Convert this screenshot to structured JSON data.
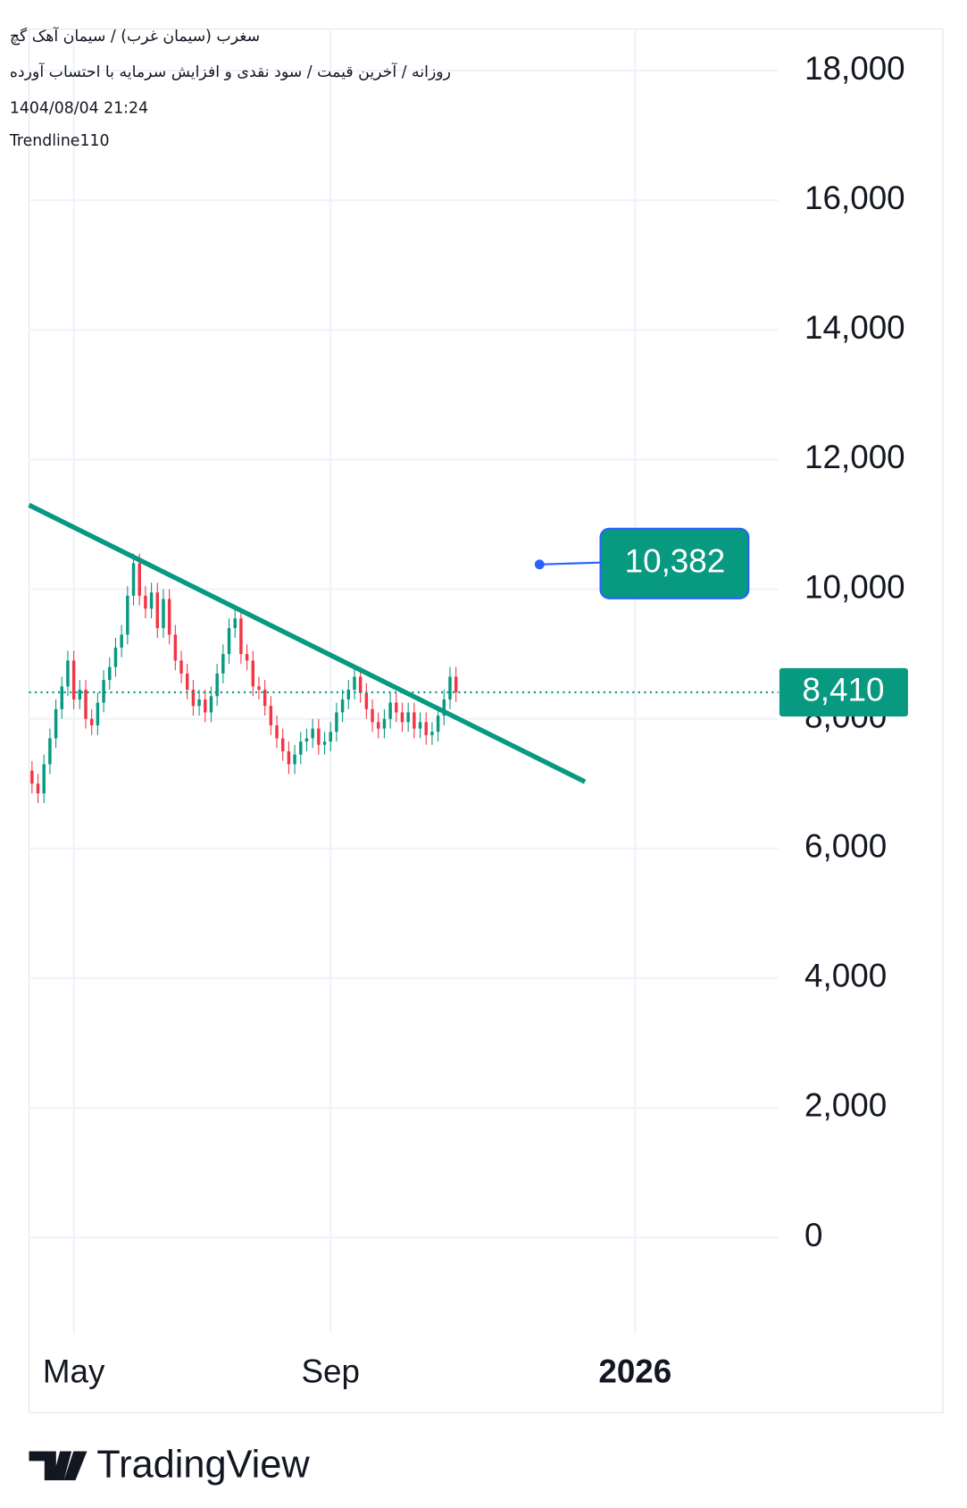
{
  "chart_data": {
    "type": "candlestick",
    "title": "سغرب (سیمان غرب) / سیمان آهک گچ",
    "subtitle": "روزانه / آخرین قیمت / سود نقدی و افزایش سرمایه با احتساب آورده",
    "date": "1404/08/04 21:24",
    "indicator": "Trendline110",
    "brand": "TradingView",
    "up_color": "#089981",
    "down_color": "#f23645",
    "open": [
      7200,
      7000,
      6850,
      7300,
      7700,
      8150,
      8500,
      8900,
      8300,
      8450,
      8000,
      7900,
      8250,
      8600,
      8800,
      9100,
      9300,
      9900,
      10400,
      9900,
      9700,
      9950,
      9400,
      9850,
      9300,
      8900,
      8700,
      8450,
      8200,
      8300,
      8100,
      8350,
      8700,
      9000,
      9400,
      9550,
      9000,
      8900,
      8500,
      8450,
      8200,
      7900,
      7700,
      7500,
      7300,
      7450,
      7650,
      7700,
      7850,
      7600,
      7650,
      7800,
      8100,
      8300,
      8450,
      8650,
      8400,
      8150,
      7950,
      7850,
      8000,
      8250,
      8100,
      7950,
      8100,
      7850,
      7950,
      7750,
      7800,
      8050,
      8300,
      8650
    ],
    "high": [
      7350,
      7150,
      7450,
      7850,
      8300,
      8650,
      9050,
      9050,
      8600,
      8600,
      8150,
      8400,
      8750,
      8950,
      9250,
      9450,
      10050,
      10550,
      10550,
      10050,
      10100,
      10100,
      10000,
      10000,
      9450,
      9050,
      8850,
      8600,
      8450,
      8450,
      8500,
      8850,
      9150,
      9550,
      9700,
      9700,
      9150,
      9050,
      8650,
      8600,
      8350,
      8050,
      7850,
      7650,
      7600,
      7800,
      7850,
      8000,
      8000,
      7800,
      7950,
      8250,
      8450,
      8600,
      8800,
      8800,
      8550,
      8300,
      8100,
      8150,
      8400,
      8400,
      8250,
      8250,
      8250,
      8100,
      8100,
      7950,
      8200,
      8450,
      8800,
      8800
    ],
    "low": [
      6850,
      6700,
      6700,
      7150,
      7550,
      8000,
      8350,
      8150,
      8150,
      7850,
      7750,
      7750,
      8100,
      8450,
      8650,
      8950,
      9150,
      9750,
      9750,
      9550,
      9550,
      9250,
      9250,
      9150,
      8750,
      8550,
      8300,
      8050,
      8050,
      7950,
      7950,
      8200,
      8550,
      8850,
      9250,
      8850,
      8750,
      8350,
      8300,
      8050,
      7750,
      7550,
      7350,
      7150,
      7150,
      7300,
      7500,
      7550,
      7450,
      7450,
      7500,
      7650,
      7950,
      8150,
      8300,
      8250,
      8000,
      7800,
      7700,
      7700,
      7850,
      7950,
      7800,
      7800,
      7700,
      7700,
      7600,
      7600,
      7650,
      7900,
      8150,
      8260
    ],
    "close": [
      7000,
      6850,
      7300,
      7700,
      8150,
      8500,
      8900,
      8300,
      8450,
      8000,
      7900,
      8250,
      8600,
      8800,
      9100,
      9300,
      9900,
      10400,
      9900,
      9700,
      9950,
      9400,
      9850,
      9300,
      8900,
      8700,
      8450,
      8200,
      8300,
      8100,
      8350,
      8700,
      9000,
      9400,
      9550,
      9000,
      8900,
      8500,
      8450,
      8200,
      7900,
      7700,
      7500,
      7300,
      7450,
      7650,
      7700,
      7850,
      7600,
      7650,
      7800,
      8100,
      8300,
      8450,
      8650,
      8400,
      8150,
      7950,
      7850,
      8000,
      8250,
      8100,
      7950,
      8100,
      7850,
      7950,
      7750,
      7800,
      8050,
      8300,
      8650,
      8410
    ],
    "xlim": [
      -0.5,
      125
    ],
    "xticks": [
      {
        "value": 7,
        "label": "May"
      },
      {
        "value": 50,
        "label": "Sep"
      },
      {
        "value": 101,
        "label": "2026"
      }
    ],
    "ylim": [
      -1478,
      18642
    ],
    "yticks": [
      0,
      {
        "value": 2000,
        "label": "2,000"
      },
      {
        "value": 4000,
        "label": "4,000"
      },
      {
        "value": 6000,
        "label": "6,000"
      },
      {
        "value": 8000,
        "label": "8,000"
      },
      {
        "value": 10000,
        "label": "10,000"
      },
      {
        "value": 12000,
        "label": "12,000"
      },
      {
        "value": 14000,
        "label": "14,000"
      },
      {
        "value": 16000,
        "label": "16,000"
      },
      {
        "value": 18000,
        "label": "18,000"
      }
    ],
    "grid": true,
    "trendline": {
      "color": "#089981",
      "x": [
        -0.5,
        92.6
      ],
      "y": [
        11299,
        7030
      ]
    },
    "price_line": {
      "value": 8410,
      "label": "8,410",
      "color": "#089981"
    },
    "alert": {
      "x": 85,
      "value": 10382,
      "label": "10,382",
      "color": "#2962ff"
    }
  }
}
